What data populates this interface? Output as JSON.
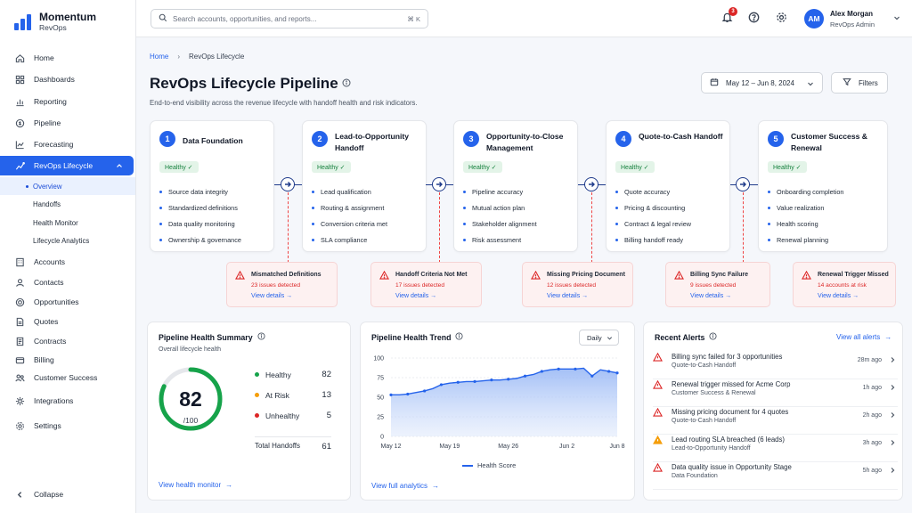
{
  "brand": {
    "name": "Momentum",
    "sub": "RevOps"
  },
  "sidebar": {
    "items": [
      {
        "label": "Home",
        "icon": "home-icon"
      },
      {
        "label": "Dashboards",
        "icon": "dashboard-icon"
      },
      {
        "label": "Reporting",
        "icon": "reporting-icon"
      },
      {
        "label": "Pipeline",
        "icon": "pipeline-icon"
      },
      {
        "label": "Forecasting",
        "icon": "forecast-icon"
      },
      {
        "label": "RevOps Lifecycle",
        "icon": "lifecycle-icon"
      },
      {
        "label": "Accounts",
        "icon": "accounts-icon"
      },
      {
        "label": "Contacts",
        "icon": "contacts-icon"
      },
      {
        "label": "Opportunities",
        "icon": "opportunities-icon"
      },
      {
        "label": "Quotes",
        "icon": "quotes-icon"
      },
      {
        "label": "Contracts",
        "icon": "contracts-icon"
      },
      {
        "label": "Billing",
        "icon": "billing-icon"
      },
      {
        "label": "Customer Success",
        "icon": "customer-success-icon"
      },
      {
        "label": "Integrations",
        "icon": "integrations-icon"
      },
      {
        "label": "Settings",
        "icon": "gear-icon"
      }
    ],
    "subitems": [
      "Overview",
      "Handoffs",
      "Health Monitor",
      "Lifecycle Analytics"
    ],
    "collapse": "Collapse"
  },
  "topbar": {
    "search_placeholder": "Search accounts, opportunities, and reports...",
    "shortcut": "⌘ K",
    "notifications_count": "3",
    "avatar_initials": "AM",
    "user_name": "Alex Morgan",
    "user_role": "RevOps Admin"
  },
  "breadcrumb": {
    "home": "Home",
    "current": "RevOps Lifecycle"
  },
  "header": {
    "title": "RevOps Lifecycle Pipeline",
    "subtitle": "End-to-end visibility across the revenue lifecycle with handoff health and risk indicators.",
    "date_range": "May 12 – Jun 8, 2024",
    "filters": "Filters"
  },
  "stages": [
    {
      "num": "1",
      "title": "Data Foundation",
      "health": "Healthy ✓",
      "items": [
        "Source data integrity",
        "Standardized definitions",
        "Data quality monitoring",
        "Ownership & governance"
      ]
    },
    {
      "num": "2",
      "title": "Lead-to-Opportunity Handoff",
      "health": "Healthy ✓",
      "items": [
        "Lead qualification",
        "Routing & assignment",
        "Conversion criteria met",
        "SLA compliance"
      ]
    },
    {
      "num": "3",
      "title": "Opportunity-to-Close Management",
      "health": "Healthy ✓",
      "items": [
        "Pipeline accuracy",
        "Mutual action plan",
        "Stakeholder alignment",
        "Risk assessment"
      ]
    },
    {
      "num": "4",
      "title": "Quote-to-Cash Handoff",
      "health": "Healthy ✓",
      "items": [
        "Quote accuracy",
        "Pricing & discounting",
        "Contract & legal review",
        "Billing handoff ready"
      ]
    },
    {
      "num": "5",
      "title": "Customer Success & Renewal",
      "health": "Healthy ✓",
      "items": [
        "Onboarding completion",
        "Value realization",
        "Health scoring",
        "Renewal planning"
      ]
    }
  ],
  "issues": [
    {
      "title": "Mismatched Definitions",
      "count": "23 issues detected",
      "link": "View details"
    },
    {
      "title": "Handoff Criteria Not Met",
      "count": "17 issues detected",
      "link": "View details"
    },
    {
      "title": "Missing Pricing Document",
      "count": "12 issues detected",
      "link": "View details"
    },
    {
      "title": "Billing Sync Failure",
      "count": "9 issues detected",
      "link": "View details"
    },
    {
      "title": "Renewal Trigger Missed",
      "count": "14 accounts at risk",
      "link": "View details"
    }
  ],
  "summary": {
    "title": "Pipeline Health Summary",
    "subtitle": "Overall lifecycle health",
    "score": 82,
    "score_max": "/100",
    "rows": [
      {
        "label": "Healthy",
        "value": "82",
        "color": "#16a34a"
      },
      {
        "label": "At Risk",
        "value": "13",
        "color": "#f59e0b"
      },
      {
        "label": "Unhealthy",
        "value": "5",
        "color": "#dc2626"
      }
    ],
    "total_label": "Total Handoffs",
    "total_value": "61",
    "link": "View health monitor"
  },
  "trend": {
    "title": "Pipeline Health Trend",
    "period": "Daily",
    "link": "View full analytics"
  },
  "chart_data": {
    "type": "area",
    "x": [
      "May 12",
      "May 13",
      "May 14",
      "May 15",
      "May 16",
      "May 17",
      "May 18",
      "May 19",
      "May 20",
      "May 21",
      "May 22",
      "May 23",
      "May 24",
      "May 25",
      "May 26",
      "May 27",
      "May 28",
      "May 29",
      "May 30",
      "May 31",
      "Jun 1",
      "Jun 2",
      "Jun 3",
      "Jun 4",
      "Jun 5",
      "Jun 6",
      "Jun 7",
      "Jun 8"
    ],
    "series": [
      {
        "name": "Health Score",
        "values": [
          53,
          53,
          54,
          56,
          58,
          61,
          66,
          68,
          69,
          70,
          70,
          71,
          72,
          72,
          73,
          74,
          77,
          79,
          83,
          85,
          86,
          86,
          86,
          87,
          77,
          85,
          83,
          81
        ]
      }
    ],
    "xticks": [
      "May 12",
      "May 19",
      "May 26",
      "Jun 2",
      "Jun 8"
    ],
    "yticks": [
      0,
      25,
      50,
      75,
      100
    ],
    "ylim": [
      0,
      100
    ],
    "grid": true,
    "legend": "bottom"
  },
  "alerts": {
    "title": "Recent Alerts",
    "view_all": "View all alerts",
    "items": [
      {
        "title": "Billing sync failed for 3 opportunities",
        "sub": "Quote-to-Cash Handoff",
        "time": "28m ago",
        "level": "high"
      },
      {
        "title": "Renewal trigger missed for Acme Corp",
        "sub": "Customer Success & Renewal",
        "time": "1h ago",
        "level": "high"
      },
      {
        "title": "Missing pricing document for 4 quotes",
        "sub": "Quote-to-Cash Handoff",
        "time": "2h ago",
        "level": "high"
      },
      {
        "title": "Lead routing SLA breached (6 leads)",
        "sub": "Lead-to-Opportunity Handoff",
        "time": "3h ago",
        "level": "medium"
      },
      {
        "title": "Data quality issue in Opportunity Stage",
        "sub": "Data Foundation",
        "time": "5h ago",
        "level": "high"
      }
    ]
  },
  "colors": {
    "accent": "#2563eb",
    "healthy": "#16a34a",
    "warning": "#f59e0b",
    "danger": "#dc2626"
  }
}
